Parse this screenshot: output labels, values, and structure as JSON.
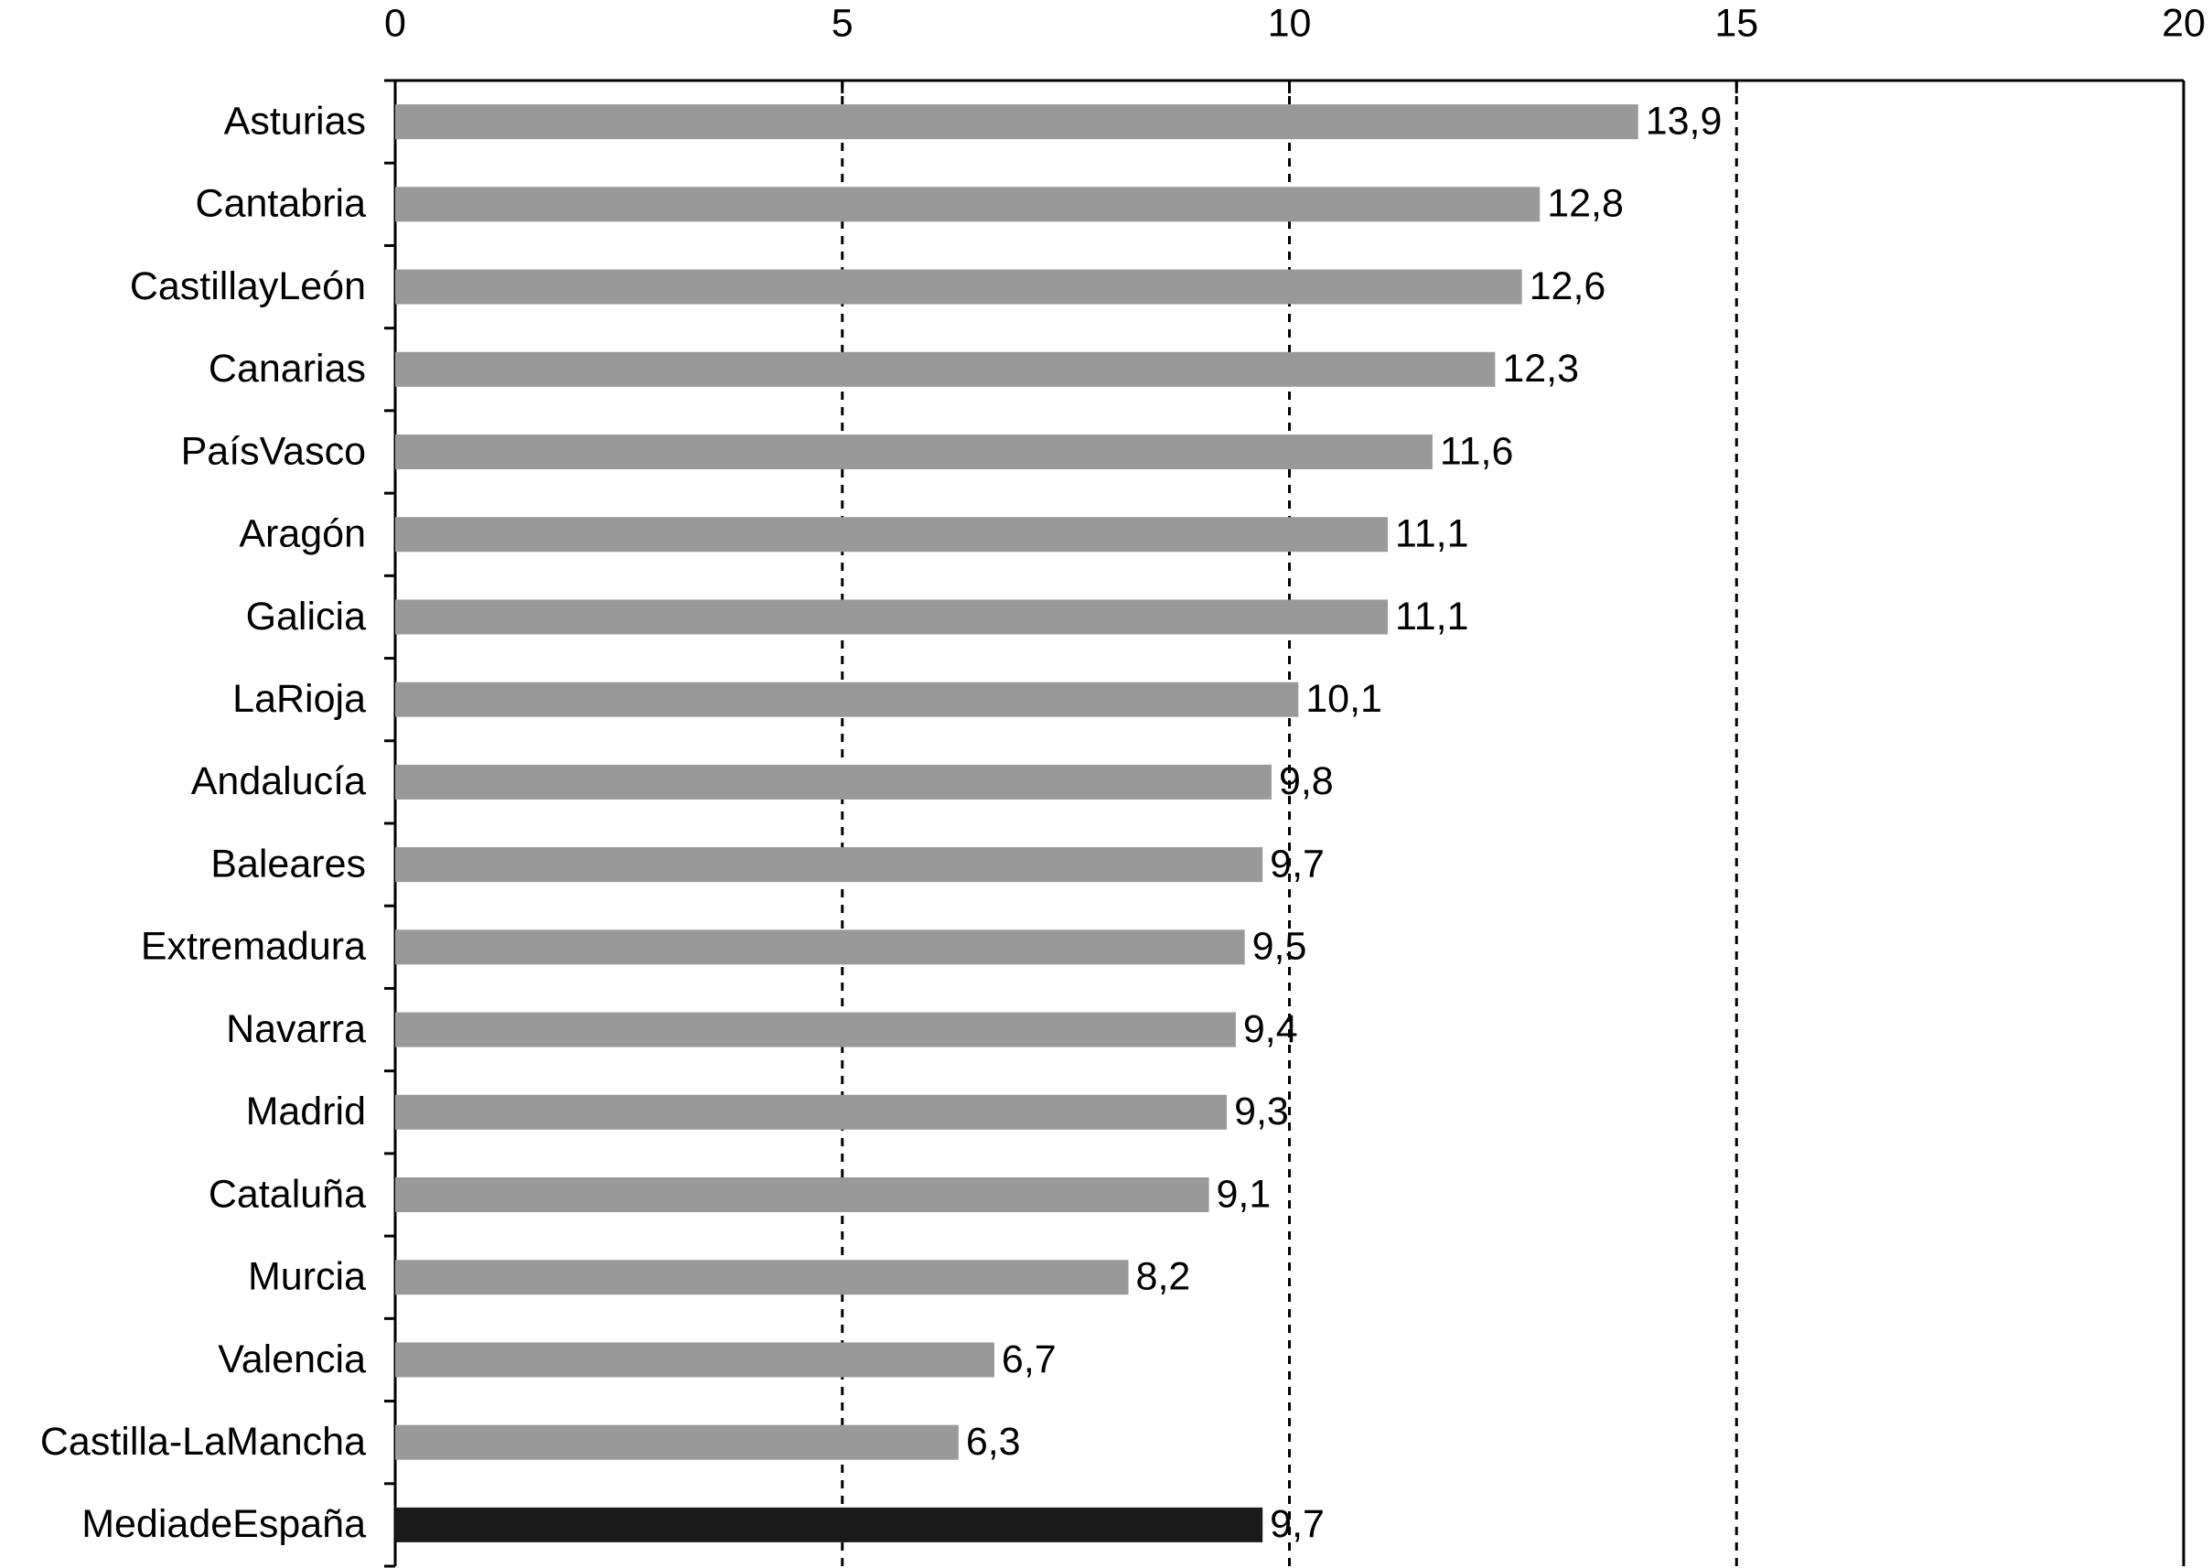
{
  "chart_data": {
    "type": "hbar",
    "categories": [
      "Asturias",
      "Cantabria",
      "CastillayLeón",
      "Canarias",
      "PaísVasco",
      "Aragón",
      "Galicia",
      "LaRioja",
      "Andalucía",
      "Baleares",
      "Extremadura",
      "Navarra",
      "Madrid",
      "Cataluña",
      "Murcia",
      "Valencia",
      "Castilla-LaMancha",
      "MediadeEspaña"
    ],
    "values": [
      13.9,
      12.8,
      12.6,
      12.3,
      11.6,
      11.1,
      11.1,
      10.1,
      9.8,
      9.7,
      9.5,
      9.4,
      9.3,
      9.1,
      8.2,
      6.7,
      6.3,
      9.7
    ],
    "value_labels": [
      "13,9",
      "12,8",
      "12,6",
      "12,3",
      "11,6",
      "11,1",
      "11,1",
      "10,1",
      "9,8",
      "9,7",
      "9,5",
      "9,4",
      "9,3",
      "9,1",
      "8,2",
      "6,7",
      "6,3",
      "9,7"
    ],
    "colors": [
      "#999999",
      "#999999",
      "#999999",
      "#999999",
      "#999999",
      "#999999",
      "#999999",
      "#999999",
      "#999999",
      "#999999",
      "#999999",
      "#999999",
      "#999999",
      "#999999",
      "#999999",
      "#999999",
      "#999999",
      "#1a1a1a"
    ],
    "xlim": [
      0,
      20
    ],
    "xticks": [
      0,
      5,
      10,
      15,
      20
    ],
    "grid": true
  }
}
